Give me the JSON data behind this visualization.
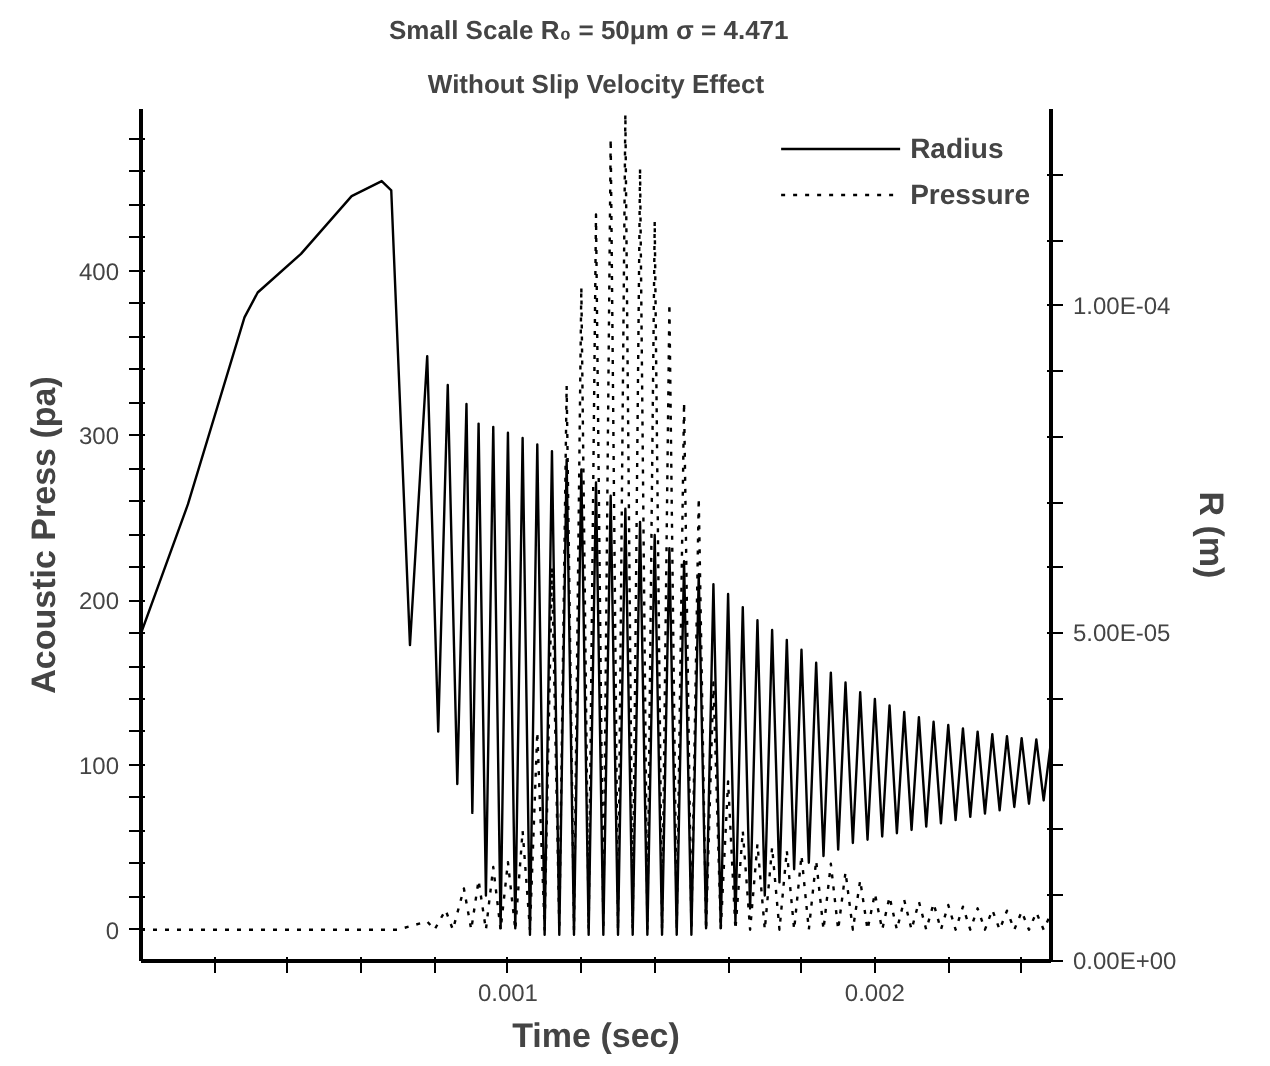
{
  "chart_data": {
    "type": "line",
    "title": "Small Scale  R₀ = 50μm  σ = 4.471",
    "subtitle": "Without Slip Velocity Effect",
    "xlabel": "Time (sec)",
    "ylabel": "Acoustic Press (pa)",
    "y2label": "R (m)",
    "xlim": [
      0,
      0.00248
    ],
    "ylim": [
      -19,
      498
    ],
    "y2lim": [
      0,
      0.00013
    ],
    "xticks": [
      {
        "value": 0.0002,
        "label": null
      },
      {
        "value": 0.0004,
        "label": null
      },
      {
        "value": 0.0006,
        "label": null
      },
      {
        "value": 0.0008,
        "label": null
      },
      {
        "value": 0.001,
        "label": "0.001"
      },
      {
        "value": 0.0012,
        "label": null
      },
      {
        "value": 0.0014,
        "label": null
      },
      {
        "value": 0.0016,
        "label": null
      },
      {
        "value": 0.0018,
        "label": null
      },
      {
        "value": 0.002,
        "label": "0.002"
      },
      {
        "value": 0.0022,
        "label": null
      },
      {
        "value": 0.0024,
        "label": null
      }
    ],
    "yticks": [
      0,
      {
        "value": 20,
        "label": null
      },
      {
        "value": 40,
        "label": null
      },
      {
        "value": 60,
        "label": null
      },
      {
        "value": 80,
        "label": null
      },
      100,
      {
        "value": 120,
        "label": null
      },
      {
        "value": 140,
        "label": null
      },
      {
        "value": 160,
        "label": null
      },
      {
        "value": 180,
        "label": null
      },
      200,
      {
        "value": 220,
        "label": null
      },
      {
        "value": 240,
        "label": null
      },
      {
        "value": 260,
        "label": null
      },
      {
        "value": 280,
        "label": null
      },
      300,
      {
        "value": 320,
        "label": null
      },
      {
        "value": 340,
        "label": null
      },
      {
        "value": 360,
        "label": null
      },
      {
        "value": 380,
        "label": null
      },
      400,
      {
        "value": 420,
        "label": null
      },
      {
        "value": 440,
        "label": null
      },
      {
        "value": 460,
        "label": null
      },
      {
        "value": 480,
        "label": null
      }
    ],
    "y2ticks": [
      {
        "value": 0,
        "label": "0.00E+00"
      },
      {
        "value": 1e-05,
        "label": null
      },
      {
        "value": 2e-05,
        "label": null
      },
      {
        "value": 3e-05,
        "label": null
      },
      {
        "value": 4e-05,
        "label": null
      },
      {
        "value": 5e-05,
        "label": "5.00E-05"
      },
      {
        "value": 6e-05,
        "label": null
      },
      {
        "value": 7e-05,
        "label": null
      },
      {
        "value": 8e-05,
        "label": null
      },
      {
        "value": 9e-05,
        "label": null
      },
      {
        "value": 0.0001,
        "label": "1.00E-04"
      },
      {
        "value": 0.00011,
        "label": null
      },
      {
        "value": 0.00012,
        "label": null
      }
    ],
    "grid": false,
    "legend": "top right",
    "series": [
      {
        "name": "Radius",
        "color": "#000000",
        "line_style": "solid",
        "axis": "y2",
        "x": [
          0,
          0.000128,
          0.000282,
          0.000318,
          0.000436,
          0.000574,
          0.000656,
          0.000682,
          0.000733,
          0.00078,
          0.00081,
          0.000836,
          0.000862,
          0.000887,
          0.000903,
          0.00092,
          0.00094,
          0.00096,
          0.00098,
          0.001,
          0.00102,
          0.00104,
          0.00106,
          0.00108,
          0.0011,
          0.00112,
          0.00114,
          0.00116,
          0.00118,
          0.0012,
          0.00122,
          0.00124,
          0.00126,
          0.00128,
          0.0013,
          0.00132,
          0.00134,
          0.00136,
          0.00138,
          0.0014,
          0.00142,
          0.00144,
          0.00146,
          0.00148,
          0.0015,
          0.00152,
          0.00154,
          0.00156,
          0.00158,
          0.0016,
          0.00162,
          0.00164,
          0.00166,
          0.00168,
          0.0017,
          0.00172,
          0.00174,
          0.00176,
          0.00178,
          0.0018,
          0.00182,
          0.00184,
          0.00186,
          0.00188,
          0.0019,
          0.00192,
          0.00194,
          0.00196,
          0.00198,
          0.002,
          0.00202,
          0.00204,
          0.00206,
          0.00208,
          0.0021,
          0.00212,
          0.00214,
          0.00216,
          0.00218,
          0.0022,
          0.00222,
          0.00224,
          0.00226,
          0.00228,
          0.0023,
          0.00232,
          0.00234,
          0.00236,
          0.00238,
          0.0024,
          0.00242,
          0.00244,
          0.00246,
          0.00248
        ],
        "values": [
          5e-05,
          6.97e-05,
          9.82e-05,
          0.000102,
          0.0001079,
          0.0001167,
          0.000119,
          0.0001176,
          4.82e-05,
          9.23e-05,
          3.5e-05,
          8.79e-05,
          2.7e-05,
          8.5e-05,
          2.26e-05,
          8.2e-05,
          1e-05,
          8.15e-05,
          5e-06,
          8.06e-05,
          5e-06,
          7.98e-05,
          4e-06,
          7.88e-05,
          4e-06,
          7.78e-05,
          4e-06,
          7.65e-05,
          4e-06,
          7.5e-05,
          4e-06,
          7.3e-05,
          4e-06,
          7.1e-05,
          4e-06,
          6.9e-05,
          4e-06,
          6.7e-05,
          4e-06,
          6.5e-05,
          4e-06,
          6.3e-05,
          4e-06,
          6.1e-05,
          4e-06,
          5.9e-05,
          5e-06,
          5.75e-05,
          5e-06,
          5.6e-05,
          6e-06,
          5.4e-05,
          8e-06,
          5.2e-05,
          1e-05,
          5.05e-05,
          1.2e-05,
          4.9e-05,
          1.4e-05,
          4.75e-05,
          1.5e-05,
          4.55e-05,
          1.6e-05,
          4.4e-05,
          1.7e-05,
          4.25e-05,
          1.8e-05,
          4.1e-05,
          1.85e-05,
          4e-05,
          1.9e-05,
          3.9e-05,
          1.95e-05,
          3.8e-05,
          2e-05,
          3.72e-05,
          2.05e-05,
          3.65e-05,
          2.1e-05,
          3.6e-05,
          2.15e-05,
          3.55e-05,
          2.2e-05,
          3.5e-05,
          2.25e-05,
          3.46e-05,
          2.3e-05,
          3.43e-05,
          2.35e-05,
          3.4e-05,
          2.4e-05,
          3.38e-05,
          2.45e-05,
          3.35e-05
        ]
      },
      {
        "name": "Pressure",
        "color": "#000000",
        "line_style": "dotted",
        "x": [
          0,
          0.0007,
          0.00078,
          0.0008,
          0.00083,
          0.00085,
          0.00088,
          0.0009,
          0.00092,
          0.00094,
          0.00096,
          0.00098,
          0.001,
          0.00102,
          0.00104,
          0.00106,
          0.00108,
          0.0011,
          0.00112,
          0.00114,
          0.00116,
          0.00118,
          0.0012,
          0.00122,
          0.00124,
          0.00126,
          0.00128,
          0.0013,
          0.00132,
          0.00134,
          0.00136,
          0.00138,
          0.0014,
          0.00142,
          0.00144,
          0.00146,
          0.00148,
          0.0015,
          0.00152,
          0.00154,
          0.00156,
          0.00158,
          0.0016,
          0.00162,
          0.00164,
          0.00166,
          0.00168,
          0.0017,
          0.00172,
          0.00174,
          0.00176,
          0.00178,
          0.0018,
          0.00182,
          0.00184,
          0.00186,
          0.00188,
          0.0019,
          0.00192,
          0.00194,
          0.00196,
          0.00198,
          0.002,
          0.00202,
          0.00204,
          0.00206,
          0.00208,
          0.0021,
          0.00212,
          0.00214,
          0.00216,
          0.00218,
          0.0022,
          0.00222,
          0.00224,
          0.00226,
          0.00228,
          0.0023,
          0.00232,
          0.00234,
          0.00236,
          0.00238,
          0.0024,
          0.00242,
          0.00244,
          0.00246,
          0.00248
        ],
        "values": [
          0,
          0,
          5,
          0,
          12,
          0,
          25,
          0,
          30,
          0,
          38,
          0,
          41,
          0,
          60,
          0,
          120,
          0,
          220,
          0,
          330,
          0,
          390,
          0,
          434,
          0,
          480,
          0,
          495,
          0,
          462,
          0,
          430,
          0,
          380,
          0,
          320,
          0,
          262,
          0,
          150,
          0,
          90,
          0,
          60,
          0,
          52,
          0,
          50,
          0,
          48,
          0,
          45,
          0,
          42,
          0,
          40,
          0,
          35,
          0,
          30,
          0,
          22,
          0,
          20,
          0,
          18,
          0,
          17,
          0,
          16,
          0,
          15,
          0,
          14,
          0,
          13,
          0,
          12,
          0,
          11.5,
          0,
          11,
          0,
          10.5,
          0,
          10
        ]
      }
    ]
  }
}
